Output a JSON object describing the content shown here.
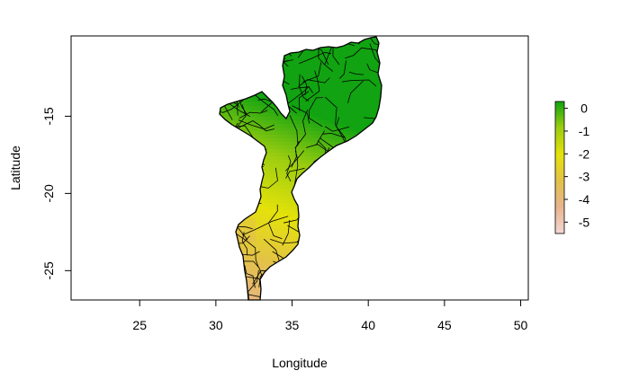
{
  "chart_data": {
    "type": "choropleth-map",
    "region": "Mozambique districts",
    "xlabel": "Longitude",
    "ylabel": "Latitude",
    "xlim": [
      20.5,
      50.5
    ],
    "ylim": [
      -26.9,
      -9.8
    ],
    "x_ticks": [
      {
        "value": 25,
        "label": "25"
      },
      {
        "value": 30,
        "label": "30"
      },
      {
        "value": 35,
        "label": "35"
      },
      {
        "value": 40,
        "label": "40"
      },
      {
        "value": 45,
        "label": "45"
      },
      {
        "value": 50,
        "label": "50"
      }
    ],
    "y_ticks": [
      {
        "value": -15,
        "label": "-15"
      },
      {
        "value": -20,
        "label": "-20"
      },
      {
        "value": -25,
        "label": "-25"
      }
    ],
    "legend": {
      "placement": "right",
      "range": [
        -5.5,
        0.3
      ],
      "ticks": [
        {
          "value": 0,
          "label": "0"
        },
        {
          "value": -1,
          "label": "-1"
        },
        {
          "value": -2,
          "label": "-2"
        },
        {
          "value": -3,
          "label": "-3"
        },
        {
          "value": -4,
          "label": "-4"
        },
        {
          "value": -5,
          "label": "-5"
        }
      ],
      "colors": [
        "#f2d7d3",
        "#e8b48e",
        "#e3c14a",
        "#e4e20a",
        "#9ccd10",
        "#11a311"
      ]
    },
    "grid": false
  }
}
